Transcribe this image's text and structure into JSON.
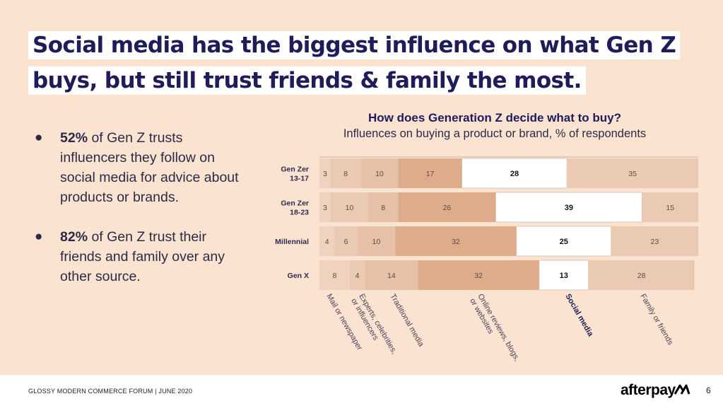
{
  "heading": {
    "line1": "Social media has the biggest influence on what Gen Z",
    "line2": "buys, but still trust friends & family the most."
  },
  "bullets": [
    {
      "bold": "52%",
      "text": " of Gen Z trusts influencers they follow on social media for advice about products or brands."
    },
    {
      "bold": "82%",
      "text": " of Gen Z trust their friends and family over any other source."
    }
  ],
  "chart_data": {
    "type": "bar",
    "stacked": true,
    "orientation": "horizontal",
    "title": "How does Generation Z decide what to buy?",
    "subtitle": "Influences on buying a product or brand, % of respondents",
    "categories": [
      [
        "Gen Zer",
        "13-17"
      ],
      [
        "Gen Zer",
        "18-23"
      ],
      [
        "Millennial"
      ],
      [
        "Gen X"
      ]
    ],
    "series": [
      {
        "name": "Mail or newspaper",
        "values": [
          3,
          3,
          4,
          8
        ],
        "color": "#f0d3bf"
      },
      {
        "name": "Experts, celebrities, or influencers",
        "values": [
          8,
          10,
          6,
          4
        ],
        "color": "#ebcab4"
      },
      {
        "name": "Traditional media",
        "values": [
          10,
          8,
          10,
          14
        ],
        "color": "#e6c0a7"
      },
      {
        "name": "Online reviews, blogs, or websites",
        "values": [
          17,
          26,
          32,
          32
        ],
        "color": "#deab8b"
      },
      {
        "name": "Social media",
        "values": [
          28,
          39,
          25,
          13
        ],
        "color": "#ffffff",
        "highlight": true
      },
      {
        "name": "Family or friends",
        "values": [
          35,
          15,
          23,
          28
        ],
        "color": "#ebcab4"
      }
    ],
    "xlim": [
      0,
      100
    ],
    "legend": "bottom-rotated"
  },
  "footer": {
    "left": "GLOSSY MODERN COMMERCE FORUM | JUNE 2020",
    "brand": "afterpay",
    "page": "6"
  }
}
